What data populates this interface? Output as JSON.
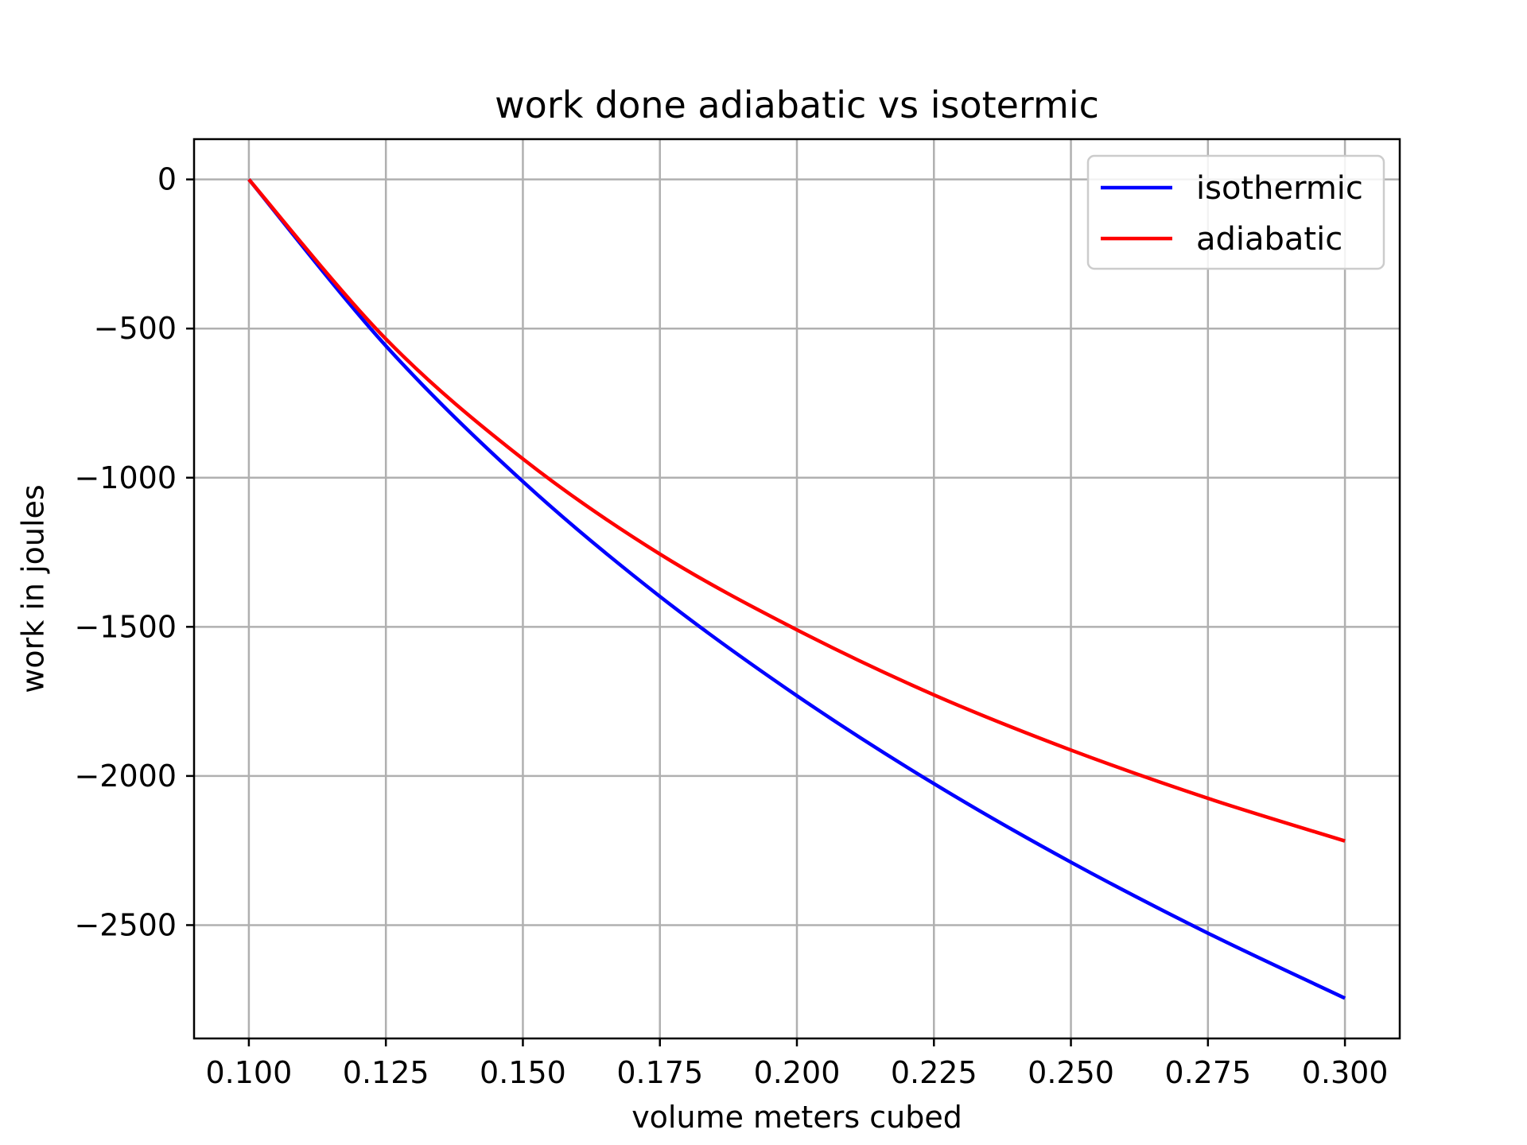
{
  "chart_data": {
    "type": "line",
    "title": "work done adiabatic vs isotermic",
    "xlabel": "volume meters cubed",
    "ylabel": "work in joules",
    "xlim": [
      0.09,
      0.31
    ],
    "ylim": [
      -2880,
      135
    ],
    "xticks": [
      0.1,
      0.125,
      0.15,
      0.175,
      0.2,
      0.225,
      0.25,
      0.275,
      0.3
    ],
    "xtick_labels": [
      "0.100",
      "0.125",
      "0.150",
      "0.175",
      "0.200",
      "0.225",
      "0.250",
      "0.275",
      "0.300"
    ],
    "yticks": [
      0,
      -500,
      -1000,
      -1500,
      -2000,
      -2500
    ],
    "ytick_labels": [
      "0",
      "−500",
      "−1000",
      "−1500",
      "−2000",
      "−2500"
    ],
    "grid": true,
    "legend_position": "top-right",
    "x": [
      0.1,
      0.125,
      0.15,
      0.175,
      0.2,
      0.225,
      0.25,
      0.275,
      0.3
    ],
    "series": [
      {
        "name": "isothermic",
        "color": "#0000ff",
        "values": [
          0,
          -558,
          -1013,
          -1398,
          -1731,
          -2026,
          -2289,
          -2527,
          -2745
        ]
      },
      {
        "name": "adiabatic",
        "color": "#ff0000",
        "values": [
          0,
          -535,
          -937,
          -1256,
          -1510,
          -1728,
          -1913,
          -2075,
          -2218
        ]
      }
    ]
  }
}
